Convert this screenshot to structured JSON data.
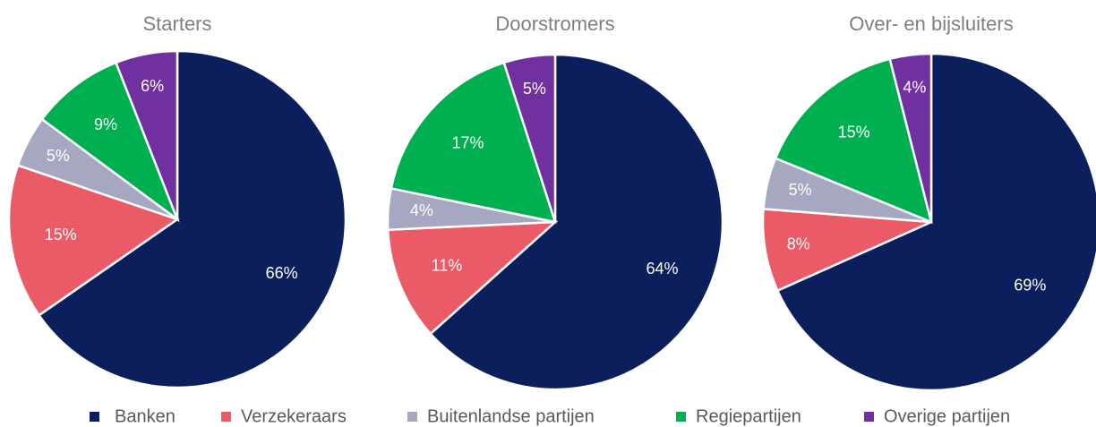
{
  "chart_data": [
    {
      "type": "pie",
      "title": "Starters",
      "categories": [
        "Banken",
        "Verzekeraars",
        "Buitenlandse partijen",
        "Regiepartijen",
        "Overige partijen"
      ],
      "values": [
        66,
        15,
        5,
        9,
        6
      ],
      "value_labels": [
        "66%",
        "15%",
        "5%",
        "9%",
        "6%"
      ],
      "colors": [
        "#0b1f5c",
        "#eb5a67",
        "#a5a8c0",
        "#00b050",
        "#7030a0"
      ]
    },
    {
      "type": "pie",
      "title": "Doorstromers",
      "categories": [
        "Banken",
        "Verzekeraars",
        "Buitenlandse partijen",
        "Regiepartijen",
        "Overige partijen"
      ],
      "values": [
        64,
        11,
        4,
        17,
        5
      ],
      "value_labels": [
        "64%",
        "11%",
        "4%",
        "17%",
        "5%"
      ],
      "colors": [
        "#0b1f5c",
        "#eb5a67",
        "#a5a8c0",
        "#00b050",
        "#7030a0"
      ]
    },
    {
      "type": "pie",
      "title": "Over- en bijsluiters",
      "categories": [
        "Banken",
        "Verzekeraars",
        "Buitenlandse partijen",
        "Regiepartijen",
        "Overige partijen"
      ],
      "values": [
        69,
        8,
        5,
        15,
        4
      ],
      "value_labels": [
        "69%",
        "8%",
        "5%",
        "15%",
        "4%"
      ],
      "colors": [
        "#0b1f5c",
        "#eb5a67",
        "#a5a8c0",
        "#00b050",
        "#7030a0"
      ]
    }
  ]
}
